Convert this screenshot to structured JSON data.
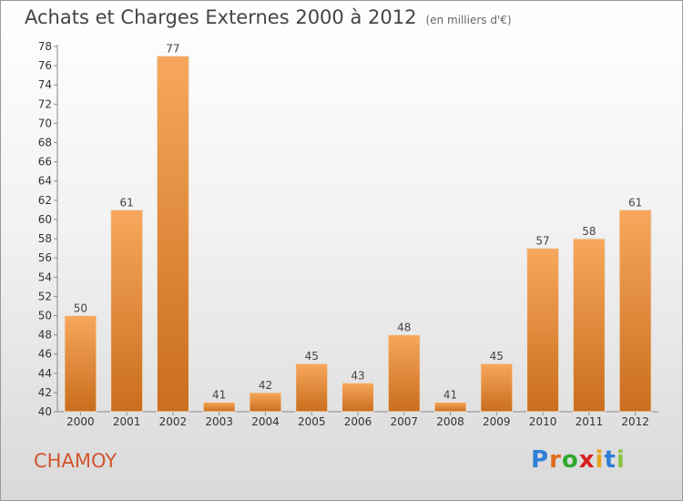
{
  "header": {
    "title": "Achats et Charges Externes 2000 à 2012",
    "subtitle": "(en milliers d'€)"
  },
  "footer": {
    "commune": "CHAMOY",
    "brand": [
      "P",
      "r",
      "o",
      "x",
      "i",
      "t",
      "i"
    ]
  },
  "colors": {
    "bar_light": "#f7a75c",
    "bar_dark": "#c96e1d",
    "commune": "#d2542d",
    "brand": [
      "#2f7fd8",
      "#e06a1a",
      "#2fa82f",
      "#d81e1e",
      "#e8a51a",
      "#2f7fd8",
      "#8bc53f"
    ]
  },
  "chart_data": {
    "type": "bar",
    "title": "Achats et Charges Externes 2000 à 2012",
    "subtitle": "(en milliers d'€)",
    "categories": [
      "2000",
      "2001",
      "2002",
      "2003",
      "2004",
      "2005",
      "2006",
      "2007",
      "2008",
      "2009",
      "2010",
      "2011",
      "2012"
    ],
    "values": [
      50,
      61,
      77,
      41,
      42,
      45,
      43,
      48,
      41,
      45,
      57,
      58,
      61
    ],
    "ylim": [
      40,
      78
    ],
    "yticks": [
      40,
      42,
      44,
      46,
      48,
      50,
      52,
      54,
      56,
      58,
      60,
      62,
      64,
      66,
      68,
      70,
      72,
      74,
      76,
      78
    ],
    "grid": false,
    "legend": "none"
  }
}
